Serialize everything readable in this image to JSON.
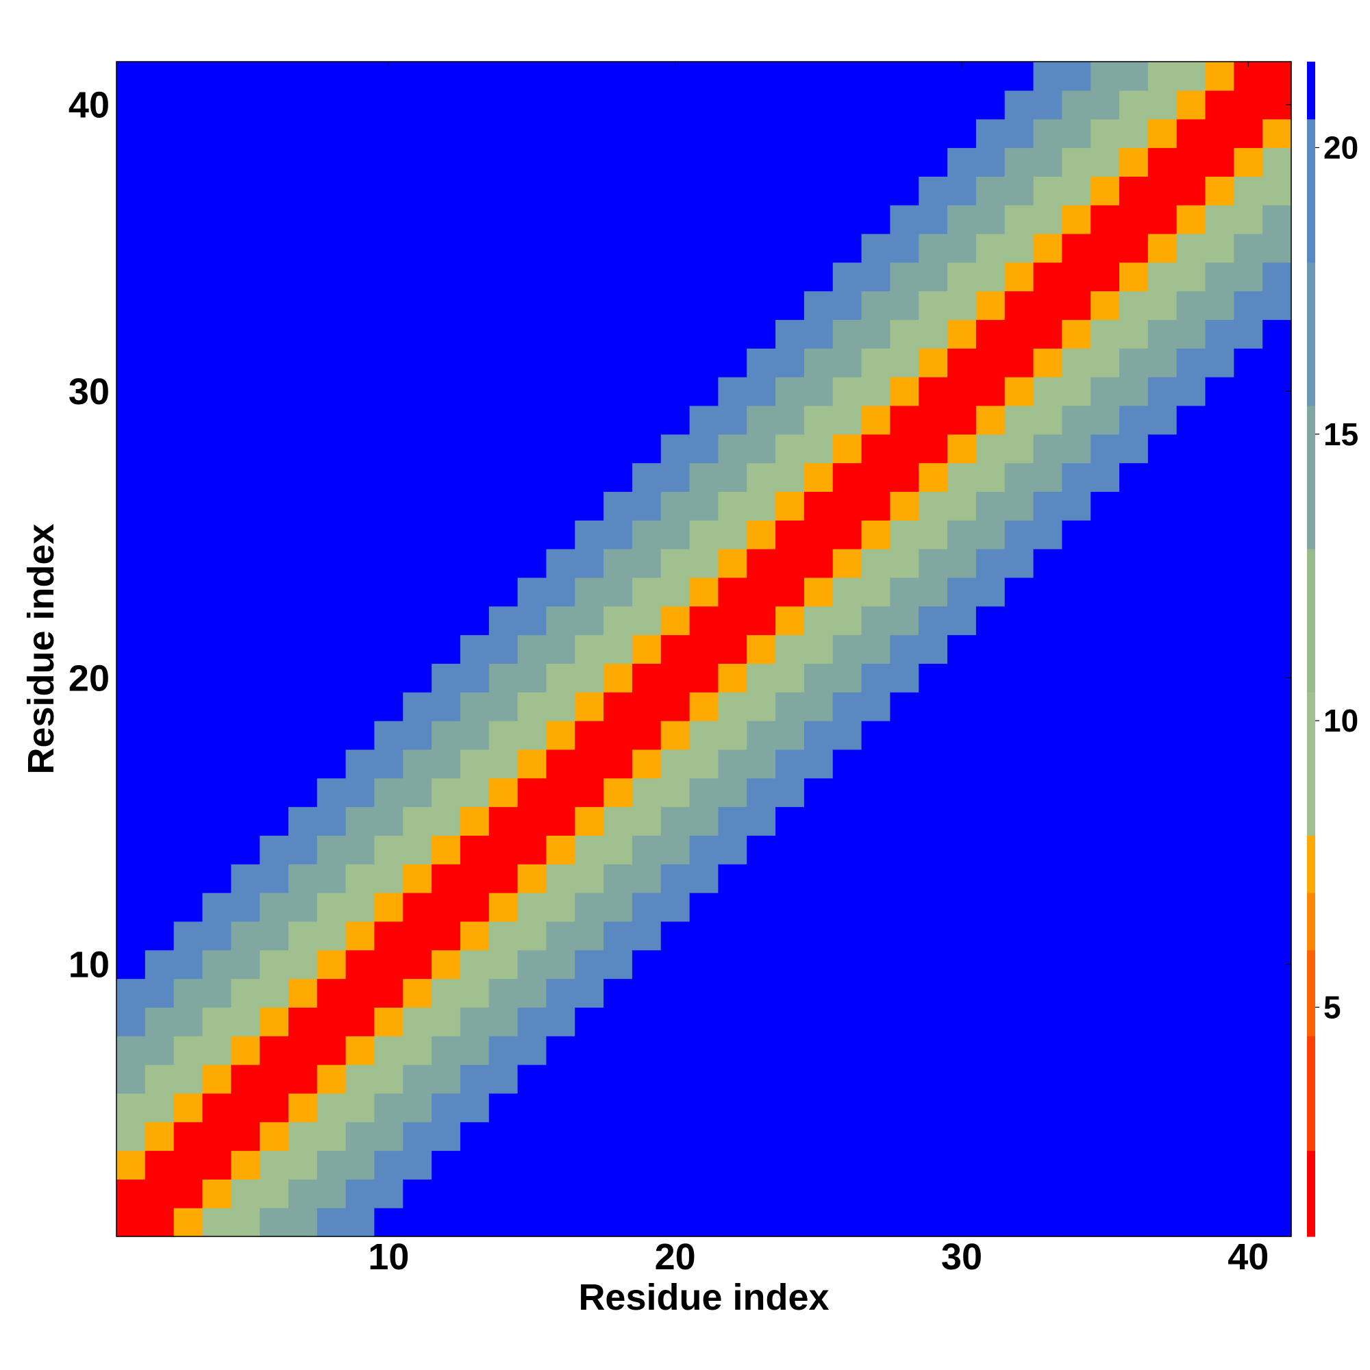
{
  "chart_data": {
    "type": "heatmap",
    "title": "",
    "xlabel": "Residue index",
    "ylabel": "Residue index",
    "xlim": [
      0.5,
      41.5
    ],
    "ylim": [
      0.5,
      41.5
    ],
    "xticks": [
      10,
      20,
      30,
      40
    ],
    "yticks": [
      10,
      20,
      30,
      40
    ],
    "grid": false,
    "colorbar": {
      "position": "right",
      "range": [
        1,
        21.5
      ],
      "ticks": [
        5,
        10,
        15,
        20
      ],
      "levels": [
        {
          "from": 1.0,
          "to": 2.5,
          "color": "#ff0000"
        },
        {
          "from": 2.5,
          "to": 4.5,
          "color": "#ff4000"
        },
        {
          "from": 4.5,
          "to": 6.0,
          "color": "#ff6000"
        },
        {
          "from": 6.0,
          "to": 7.0,
          "color": "#ff8800"
        },
        {
          "from": 7.0,
          "to": 8.0,
          "color": "#ffaa00"
        },
        {
          "from": 8.0,
          "to": 10.5,
          "color": "#a0c090"
        },
        {
          "from": 10.5,
          "to": 13.0,
          "color": "#98bb8c"
        },
        {
          "from": 13.0,
          "to": 15.5,
          "color": "#80a8a0"
        },
        {
          "from": 15.5,
          "to": 18.0,
          "color": "#6a98b4"
        },
        {
          "from": 18.0,
          "to": 20.5,
          "color": "#5a88c0"
        },
        {
          "from": 20.5,
          "to": 21.5,
          "color": "#0000ff"
        }
      ]
    },
    "matrix_rule": "value(i,j) depends on |i-j|: 0-1 -> 2 (red), 2 -> 7 (orange), 3-4 -> 9.5 (light green), 5-6 -> 14 (grey-blue), 7-8 -> 18.5 (steel blue), >=9 -> 21 (blue); i,j = 1..41"
  }
}
